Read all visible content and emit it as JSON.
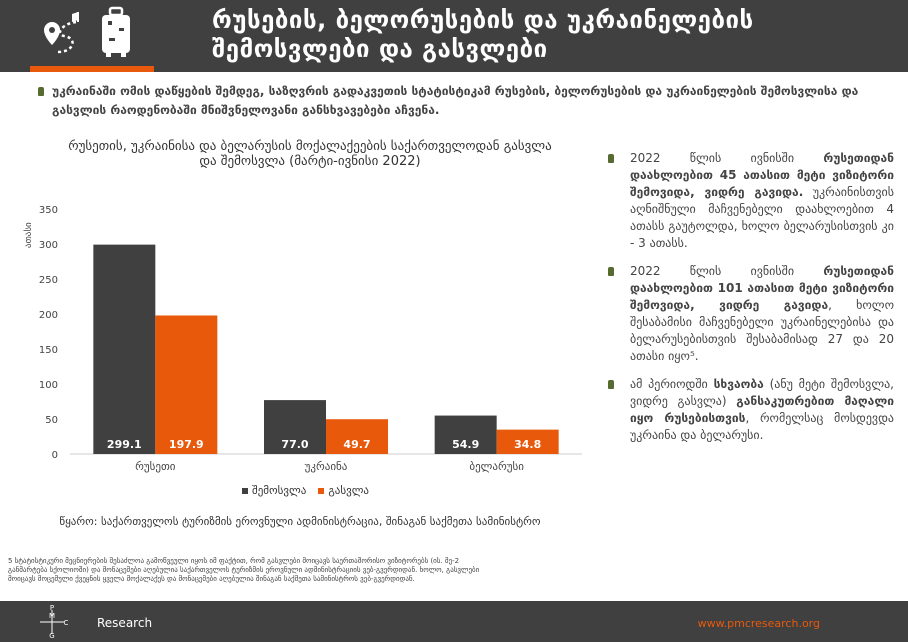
{
  "header": {
    "title": "რუსების, ბელორუსების და უკრაინელების შემოსვლები და გასვლები",
    "icons": [
      "map-route-icon",
      "luggage-icon"
    ],
    "accent_color": "#e8590c"
  },
  "intro": {
    "text": "უკრაინაში ომის დაწყების შემდეგ, საზღვრის გადაკვეთის სტატისტიკამ რუსების, ბელორუსების და უკრაინელების შემოსვლისა და გასვლის რაოდენობაში მნიშვნელოვანი განსხვავებები აჩვენა."
  },
  "chart_data": {
    "type": "bar",
    "title": "რუსეთის, უკრაინისა და ბელარუსის მოქალაქეების საქართველოდან გასვლა და შემოსვლა (მარტი-ივნისი 2022)",
    "ylabel": "ათასი",
    "ylim": [
      0,
      350
    ],
    "yticks": [
      "0",
      "50",
      "100",
      "150",
      "200",
      "250",
      "300",
      "350"
    ],
    "categories": [
      "რუსეთი",
      "უკრაინა",
      "ბელარუსი"
    ],
    "series": [
      {
        "name": "შემოსვლა",
        "color": "#404040",
        "values": [
          299.1,
          77.0,
          54.9
        ],
        "labels": [
          "299.1",
          "77.0",
          "54.9"
        ]
      },
      {
        "name": "გასვლა",
        "color": "#e8590c",
        "values": [
          197.9,
          49.7,
          34.8
        ],
        "labels": [
          "197.9",
          "49.7",
          "34.8"
        ]
      }
    ],
    "grid": false,
    "legend": "bottom"
  },
  "source": "წყარო: საქართველოს ტურიზმის ეროვნული ადმინისტრაცია, შინაგან საქმეთა სამინისტრო",
  "footnote": "5 სტატისტიკური მეცნიერების შესაძლოა გამოწვეული იყოს იმ ფაქტით, რომ გასვლები მოიცავს საერთაშორისო ვიზიტორებს (ის. მე-2 განმარტება სქოლიოში) და მონაცემები აღებულია საქართველოს ტურიზმის ეროვნული ადმინისტრაციის ვებ-გვერდიდან. ხოლო, გასვლები მოიცავს მოცემული ქვეყნის ყველა მოქალაქეს და მონაცემები აღებულია შინაგან საქმეთა სამინისტროს ვებ-გვერდიდან.",
  "bullets": [
    {
      "parts": [
        {
          "t": "2022 წლის ივნისში ",
          "b": false
        },
        {
          "t": "რუსეთიდან დაახლოებით 45 ათასით მეტი ვიზიტორი შემოვიდა, ვიდრე გავიდა.",
          "b": true
        },
        {
          "t": " უკრაინისთვის აღნიშნული მაჩვენებელი დაახლოებით 4 ათასს გაუტოლდა, ხოლო ბელარუსისთვის კი - 3 ათასს.",
          "b": false
        }
      ]
    },
    {
      "parts": [
        {
          "t": "2022 წლის ივნისში ",
          "b": false
        },
        {
          "t": "რუსეთიდან დაახლოებით 101 ათასით მეტი ვიზიტორი შემოვიდა, ვიდრე გავიდა",
          "b": true
        },
        {
          "t": ", ხოლო შესაბამისი მაჩვენებელი უკრაინელებისა და ბელარუსებისთვის შესაბამისად 27 და 20 ათასი იყო⁵.",
          "b": false
        }
      ]
    },
    {
      "parts": [
        {
          "t": "ამ პერიოდში ",
          "b": false
        },
        {
          "t": "სხვაობა",
          "b": true
        },
        {
          "t": " (ანუ მეტი შემოსვლა, ვიდრე გასვლა) ",
          "b": false
        },
        {
          "t": "განსაკუთრებით მაღალი იყო რუსებისთვის",
          "b": true
        },
        {
          "t": ", რომელსაც მოსდევდა უკრაინა და ბელარუსი.",
          "b": false
        }
      ]
    }
  ],
  "footer": {
    "brand": "Research",
    "url": "www.pmcresearch.org",
    "logo_letters": [
      "P",
      "M",
      "C",
      "G"
    ]
  }
}
